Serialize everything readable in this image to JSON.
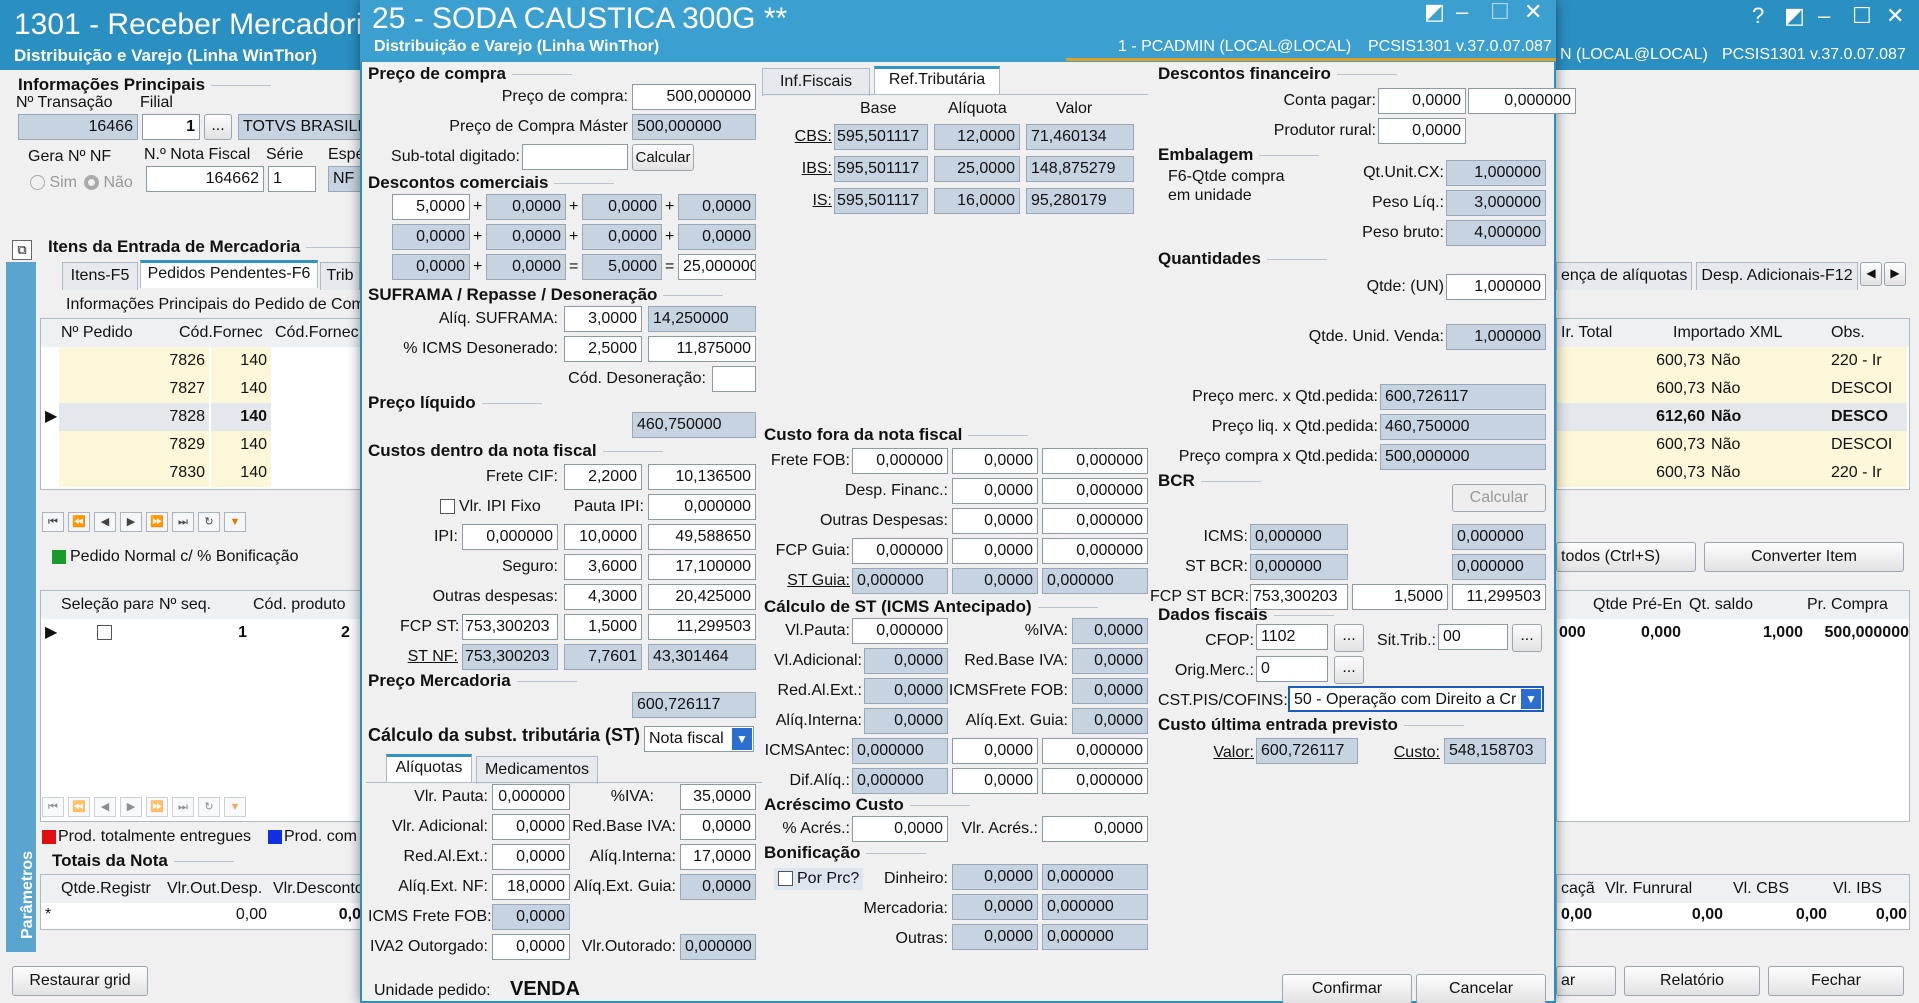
{
  "bg": {
    "title": "1301 - Receber Mercadoria",
    "subtitle": "Distribuição e Varejo (Linha WinThor)",
    "conn": "N (LOCAL@LOCAL)",
    "ver": "PCSIS1301  v.37.0.07.087",
    "info_title": "Informações Principais",
    "lbl_trans": "Nº Transação",
    "lbl_filial": "Filial",
    "trans": "16466",
    "filial": "1",
    "empresa": "TOTVS BRASILIA",
    "lbl_gera": "Gera Nº NF",
    "lbl_nota": "N.º Nota Fiscal",
    "lbl_serie": "Série",
    "lbl_esp": "Espé",
    "sim": "Sim",
    "nao": "Não",
    "nota": "164662",
    "serie": "1",
    "esp": "NF",
    "itens_title": "Itens da Entrada de Mercadoria",
    "tabs": [
      "Itens-F5",
      "Pedidos Pendentes-F6",
      "Trib"
    ],
    "subheader": "Informações Principais do Pedido de Com",
    "cols": [
      "Nº Pedido",
      "Cód.Fornec",
      "Cód.Fornec"
    ],
    "rows": [
      [
        "7826",
        "140"
      ],
      [
        "7827",
        "140"
      ],
      [
        "7828",
        "140"
      ],
      [
        "7829",
        "140"
      ],
      [
        "7830",
        "140"
      ]
    ],
    "right_tabs": [
      "ença de alíquotas",
      "Desp. Adicionais-F12"
    ],
    "right_cols": [
      "Ir. Total",
      "Importado XML",
      "Obs."
    ],
    "right_rows": [
      [
        "600,73",
        "Não",
        "220 - Ir"
      ],
      [
        "600,73",
        "Não",
        "DESCOI"
      ],
      [
        "612,60",
        "Não",
        "DESCO"
      ],
      [
        "600,73",
        "Não",
        "DESCOI"
      ],
      [
        "600,73",
        "Não",
        "220 - Ir"
      ]
    ],
    "legend1": "Pedido Normal c/ % Bonificação",
    "todos": "todos (Ctrl+S)",
    "converter": "Converter Item",
    "cols2": [
      "Seleção para",
      "Nº seq.",
      "Cód. produto"
    ],
    "row2": [
      "1",
      "2"
    ],
    "right_cols2": [
      "Qtde Pré-En",
      "Qt. saldo",
      "Pr. Compra"
    ],
    "right_row2": [
      "000",
      "0,000",
      "1,000",
      "500,000000"
    ],
    "legend2a": "Prod. totalmente entregues",
    "legend2b": "Prod. com",
    "totais": "Totais da Nota",
    "tot_cols": [
      "Qtde.Registr",
      "Vlr.Out.Desp.",
      "Vlr.Desconto"
    ],
    "tot_row": [
      "*",
      "0,00",
      "0,0"
    ],
    "tot_right_cols": [
      "caçã",
      "Vlr. Funrural",
      "Vl. CBS",
      "Vl. IBS"
    ],
    "tot_right_row": [
      "0,00",
      "0,00",
      "0,00",
      "0,00"
    ],
    "parametros": "Parâmetros",
    "restaurar": "Restaurar grid",
    "ar": "ar",
    "relatorio": "Relatório",
    "fechar": "Fechar"
  },
  "dlg": {
    "title": "25 - SODA CAUSTICA 300G **",
    "subtitle": "Distribuição e Varejo (Linha WinThor)",
    "conn": "1 - PCADMIN (LOCAL@LOCAL)",
    "ver": "PCSIS1301  v.37.0.07.087",
    "preco_compra_sec": "Preço de compra",
    "lbl_preco_compra": "Preço de compra:",
    "preco_compra": "500,000000",
    "lbl_preco_master": "Preço de Compra Máster",
    "preco_master": "500,000000",
    "lbl_subtotal": "Sub-total digitado:",
    "calcular": "Calcular",
    "desc_com_sec": "Descontos comerciais",
    "desc": [
      [
        "5,0000",
        "0,0000",
        "0,0000",
        "0,0000"
      ],
      [
        "0,0000",
        "0,0000",
        "0,0000",
        "0,0000"
      ],
      [
        "0,0000",
        "0,0000",
        "5,0000",
        "25,000000"
      ]
    ],
    "ops": [
      "+",
      "+",
      "+",
      "+",
      "+",
      "+",
      "+",
      "=",
      "="
    ],
    "suframa_sec": "SUFRAMA / Repasse / Desoneração",
    "lbl_aliq_suframa": "Alíq. SUFRAMA:",
    "aliq_suframa": "3,0000",
    "val_suframa": "14,250000",
    "lbl_icms_deson": "% ICMS Desonerado:",
    "icms_deson": "2,5000",
    "val_icms_deson": "11,875000",
    "lbl_cod_deson": "Cód. Desoneração:",
    "preco_liq_sec": "Preço líquido",
    "preco_liq": "460,750000",
    "custos_dentro_sec": "Custos dentro da nota fiscal",
    "lbl_frete_cif": "Frete CIF:",
    "frete_cif": "2,2000",
    "val_frete_cif": "10,136500",
    "lbl_ipi_fixo": "Vlr. IPI Fixo",
    "lbl_pauta_ipi": "Pauta IPI:",
    "pauta_ipi": "0,000000",
    "lbl_ipi": "IPI:",
    "ipi_a": "0,000000",
    "ipi_b": "10,0000",
    "ipi_c": "49,588650",
    "lbl_seguro": "Seguro:",
    "seguro": "3,6000",
    "val_seguro": "17,100000",
    "lbl_outras": "Outras despesas:",
    "outras": "4,3000",
    "val_outras": "20,425000",
    "lbl_fcp_st": "FCP ST:",
    "fcp_st_a": "753,300203",
    "fcp_st_b": "1,5000",
    "fcp_st_c": "11,299503",
    "lbl_st_nf": "ST NF:",
    "st_nf_a": "753,300203",
    "st_nf_b": "7,7601",
    "st_nf_c": "43,301464",
    "preco_merc_sec": "Preço Mercadoria",
    "preco_merc": "600,726117",
    "calc_st_sec": "Cálculo da subst. tributária (ST)",
    "calc_st_sel": "Nota fiscal",
    "tabs_bottom": [
      "Alíquotas",
      "Medicamentos"
    ],
    "lbl_vlr_pauta": "Vlr. Pauta:",
    "vlr_pauta": "0,000000",
    "lbl_iva": "%IVA:",
    "iva": "35,0000",
    "lbl_vlr_adic": "Vlr. Adicional:",
    "vlr_adic": "0,0000",
    "lbl_red_iva": "Red.Base IVA:",
    "red_iva": "0,0000",
    "lbl_red_al": "Red.Al.Ext.:",
    "red_al": "0,0000",
    "lbl_aliq_int": "Alíq.Interna:",
    "aliq_int": "17,0000",
    "lbl_aliq_ext_nf": "Alíq.Ext. NF:",
    "aliq_ext_nf": "18,0000",
    "lbl_aliq_ext_guia": "Alíq.Ext. Guia:",
    "aliq_ext_guia": "0,0000",
    "lbl_icms_frete": "ICMS Frete FOB:",
    "icms_frete": "0,0000",
    "lbl_iva2": "IVA2 Outorgado:",
    "iva2": "0,0000",
    "lbl_vlr_out": "Vlr.Outorado:",
    "vlr_out": "0,000000",
    "unidade_lbl": "Unidade pedido:",
    "unidade": "VENDA",
    "tabs_top": [
      "Inf.Fiscais",
      "Ref.Tributária"
    ],
    "trib_cols": [
      "Base",
      "Alíquota",
      "Valor"
    ],
    "trib_rows": [
      [
        "CBS:",
        "595,501117",
        "12,0000",
        "71,460134"
      ],
      [
        "IBS:",
        "595,501117",
        "25,0000",
        "148,875279"
      ],
      [
        "IS:",
        "595,501117",
        "16,0000",
        "95,280179"
      ]
    ],
    "custo_fora_sec": "Custo fora da nota fiscal",
    "lbl_frete_fob": "Frete FOB:",
    "frete_fob": [
      "0,000000",
      "0,0000",
      "0,000000"
    ],
    "lbl_desp_fin": "Desp. Financ.:",
    "desp_fin": [
      "0,0000",
      "0,000000"
    ],
    "lbl_outras_desp": "Outras Despesas:",
    "outras_desp": [
      "0,0000",
      "0,000000"
    ],
    "lbl_fcp_guia": "FCP Guia:",
    "fcp_guia": [
      "0,000000",
      "0,0000",
      "0,000000"
    ],
    "lbl_st_guia": "ST Guia:",
    "st_guia": [
      "0,000000",
      "0,0000",
      "0,000000"
    ],
    "calc_st_ant_sec": "Cálculo de ST (ICMS Antecipado)",
    "lbl_vl_pauta": "Vl.Pauta:",
    "vl_pauta": "0,000000",
    "lbl_iva_b": "%IVA:",
    "iva_b": "0,0000",
    "lbl_vl_adic": "Vl.Adicional:",
    "vl_adic": "0,0000",
    "lbl_red_iva_b": "Red.Base IVA:",
    "red_iva_b": "0,0000",
    "lbl_red_al_b": "Red.Al.Ext.:",
    "red_al_b": "0,0000",
    "lbl_icms_frete_b": "ICMSFrete FOB:",
    "icms_frete_b": "0,0000",
    "lbl_aliq_int_b": "Alíq.Interna:",
    "aliq_int_b": "0,0000",
    "lbl_aliq_ext_guia_b": "Alíq.Ext. Guia:",
    "aliq_ext_guia_b": "0,0000",
    "lbl_icms_antec": "ICMSAntec:",
    "icms_antec": [
      "0,000000",
      "0,0000",
      "0,000000"
    ],
    "lbl_dif_aliq": "Dif.Alíq.:",
    "dif_aliq": [
      "0,000000",
      "0,0000",
      "0,000000"
    ],
    "acresc_sec": "Acréscimo Custo",
    "lbl_perc_acres": "% Acrés.:",
    "perc_acres": "0,0000",
    "lbl_vlr_acres": "Vlr. Acrés.:",
    "vlr_acres": "0,0000",
    "bonif_sec": "Bonificação",
    "lbl_por_prc": "Por Prc?",
    "lbl_dinheiro": "Dinheiro:",
    "dinheiro": [
      "0,0000",
      "0,000000"
    ],
    "lbl_mercadoria": "Mercadoria:",
    "mercadoria": [
      "0,0000",
      "0,000000"
    ],
    "lbl_outras_b": "Outras:",
    "outras_b": [
      "0,0000",
      "0,000000"
    ],
    "desc_fin_sec": "Descontos financeiro",
    "lbl_conta_pagar": "Conta pagar:",
    "conta_pagar": [
      "0,0000",
      "0,000000"
    ],
    "lbl_prod_rural": "Produtor rural:",
    "prod_rural": "0,0000",
    "emb_sec": "Embalagem",
    "f6": "F6-Qtde compra",
    "f6b": "em unidade",
    "lbl_qt_unit": "Qt.Unit.CX:",
    "qt_unit": "1,000000",
    "lbl_peso_liq": "Peso Líq.:",
    "peso_liq": "3,000000",
    "lbl_peso_bruto": "Peso bruto:",
    "peso_bruto": "4,000000",
    "qtd_sec": "Quantidades",
    "lbl_qtde": "Qtde: (UN)",
    "qtde": "1,000000",
    "lbl_qtde_unid": "Qtde. Unid. Venda:",
    "qtde_unid": "1,000000",
    "lbl_preco_merc_qtd": "Preço merc. x Qtd.pedida:",
    "preco_merc_qtd": "600,726117",
    "lbl_preco_liq_qtd": "Preço liq. x Qtd.pedida:",
    "preco_liq_qtd": "460,750000",
    "lbl_preco_compra_qtd": "Preço compra x Qtd.pedida:",
    "preco_compra_qtd": "500,000000",
    "bcr_sec": "BCR",
    "calcular2": "Calcular",
    "lbl_bcr_icms": "ICMS:",
    "bcr_icms": [
      "0,000000",
      "0,000000"
    ],
    "lbl_bcr_st": "ST BCR:",
    "bcr_st": [
      "0,000000",
      "0,000000"
    ],
    "lbl_fcp_bcr": "FCP ST BCR:",
    "fcp_bcr": [
      "753,300203",
      "1,5000",
      "11,299503"
    ],
    "dados_sec": "Dados fiscais",
    "lbl_cfop": "CFOP:",
    "cfop": "1102",
    "lbl_sit": "Sit.Trib.:",
    "sit": "00",
    "lbl_orig": "Orig.Merc.:",
    "orig": "0",
    "lbl_cst": "CST.PIS/COFINS:",
    "cst": "50 - Operação com Direito a Cr",
    "custo_ult_sec": "Custo última entrada previsto",
    "lbl_valor": "Valor:",
    "valor": "600,726117",
    "lbl_custo": "Custo:",
    "custo": "548,158703",
    "confirmar": "Confirmar",
    "cancelar": "Cancelar"
  }
}
